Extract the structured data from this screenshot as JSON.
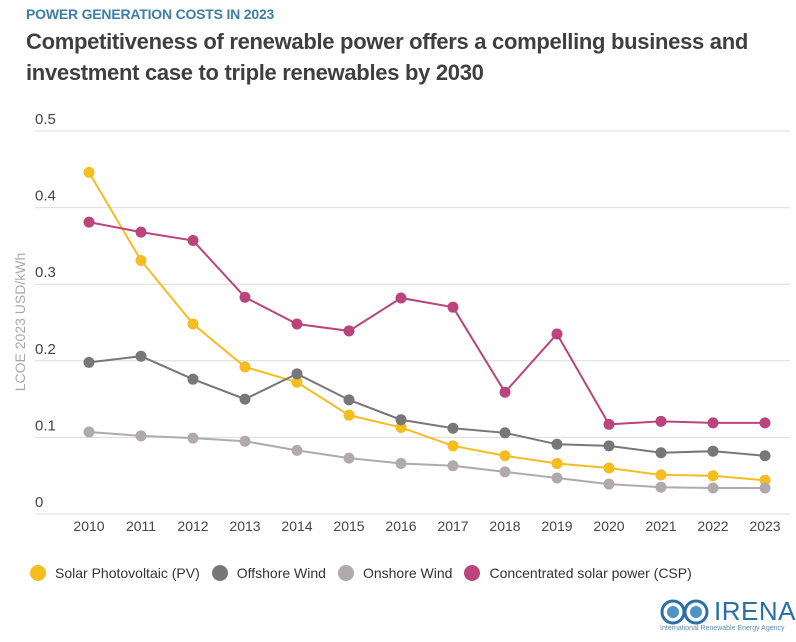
{
  "header": {
    "kicker": "POWER GENERATION COSTS IN 2023",
    "title": "Competitiveness of renewable power offers a compelling business and investment case to triple renewables by 2030"
  },
  "chart_data": {
    "type": "line",
    "title": "",
    "xlabel": "",
    "ylabel": "LCOE 2023 USD/kWh",
    "ylim": [
      0,
      0.5
    ],
    "yticks": [
      "0",
      "0.1",
      "0.2",
      "0.3",
      "0.4",
      "0.5"
    ],
    "grid": true,
    "legend_position": "bottom",
    "x": [
      "2010",
      "2011",
      "2012",
      "2013",
      "2014",
      "2015",
      "2016",
      "2017",
      "2018",
      "2019",
      "2020",
      "2021",
      "2022",
      "2023"
    ],
    "series": [
      {
        "name": "Solar Photovoltaic (PV)",
        "color": "#f5bd1f",
        "values": [
          0.446,
          0.331,
          0.248,
          0.192,
          0.172,
          0.129,
          0.113,
          0.089,
          0.076,
          0.066,
          0.06,
          0.051,
          0.05,
          0.044
        ]
      },
      {
        "name": "Offshore Wind",
        "color": "#79767a",
        "values": [
          0.198,
          0.206,
          0.176,
          0.15,
          0.183,
          0.149,
          0.123,
          0.112,
          0.106,
          0.091,
          0.089,
          0.08,
          0.082,
          0.076
        ]
      },
      {
        "name": "Onshore Wind",
        "color": "#b0a9ae",
        "values": [
          0.107,
          0.102,
          0.099,
          0.095,
          0.083,
          0.073,
          0.066,
          0.063,
          0.055,
          0.047,
          0.039,
          0.035,
          0.034,
          0.034
        ]
      },
      {
        "name": "Concentrated solar power (CSP)",
        "color": "#b9457c",
        "values": [
          0.381,
          0.368,
          0.357,
          0.283,
          0.248,
          0.239,
          0.282,
          0.27,
          0.159,
          0.235,
          0.117,
          0.121,
          0.119,
          0.119
        ]
      }
    ]
  },
  "logo": {
    "word": "IRENA",
    "sub": "International Renewable Energy Agency"
  }
}
